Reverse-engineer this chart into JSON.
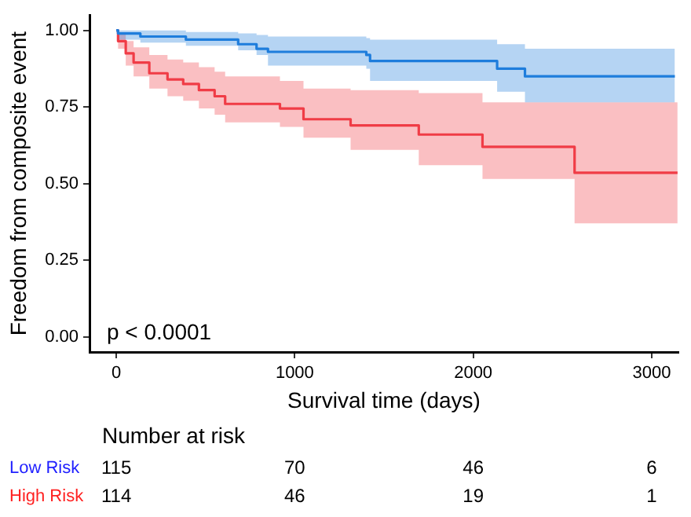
{
  "chart_data": [
    {
      "type": "step",
      "xlabel": "Survival time (days)",
      "ylabel": "Freedom from composite event",
      "annotations": [
        "p < 0.0001"
      ],
      "xlim": [
        -150,
        3150
      ],
      "xticks": [
        0,
        1000,
        2000,
        3000
      ],
      "ylim": [
        -0.05,
        1.05
      ],
      "yticks": [
        {
          "value": 0,
          "label": "0.00"
        },
        {
          "value": 0.25,
          "label": "0.25"
        },
        {
          "value": 0.5,
          "label": "0.50"
        },
        {
          "value": 0.75,
          "label": "0.75"
        },
        {
          "value": 1,
          "label": "1.00"
        }
      ],
      "grid": false,
      "legend": false,
      "marker": "none",
      "line_style": "solid",
      "series": [
        {
          "color": "#1e7ddc",
          "x": [
            0,
            10,
            135,
            390,
            683,
            786,
            850,
            1401,
            1422,
            2134,
            2290,
            3130
          ],
          "values": [
            1.0,
            0.99,
            0.98,
            0.97,
            0.955,
            0.94,
            0.93,
            0.92,
            0.9,
            0.875,
            0.85,
            0.85
          ],
          "upper": [
            1.0,
            1.0,
            1.0,
            0.995,
            0.99,
            0.985,
            0.98,
            0.975,
            0.97,
            0.955,
            0.94,
            0.94
          ],
          "lower": [
            1.0,
            0.97,
            0.96,
            0.95,
            0.935,
            0.92,
            0.885,
            0.875,
            0.835,
            0.8,
            0.765,
            0.765
          ]
        },
        {
          "color": "#f03c46",
          "x": [
            0,
            10,
            53,
            97,
            185,
            287,
            375,
            463,
            551,
            610,
            917,
            1049,
            1313,
            1695,
            2052,
            2568,
            3145
          ],
          "values": [
            1.0,
            0.965,
            0.925,
            0.895,
            0.86,
            0.84,
            0.825,
            0.805,
            0.785,
            0.76,
            0.745,
            0.71,
            0.69,
            0.66,
            0.62,
            0.535,
            0.535
          ],
          "upper": [
            1.0,
            0.99,
            0.965,
            0.945,
            0.92,
            0.905,
            0.895,
            0.88,
            0.865,
            0.85,
            0.835,
            0.81,
            0.805,
            0.795,
            0.765,
            0.765,
            0.765
          ],
          "lower": [
            1.0,
            0.94,
            0.885,
            0.85,
            0.81,
            0.785,
            0.77,
            0.745,
            0.725,
            0.7,
            0.685,
            0.65,
            0.61,
            0.56,
            0.515,
            0.37,
            0.37
          ]
        }
      ]
    },
    {
      "type": "heatmap",
      "title": "Number at risk",
      "categories": [
        null,
        null,
        null,
        null
      ],
      "y_categories": [
        "Low Risk",
        "High Risk"
      ],
      "colors": [
        "#2020ff",
        "#ff2020"
      ],
      "data_labels": true,
      "cells": [
        [
          115,
          70,
          46,
          6
        ],
        [
          114,
          46,
          19,
          1
        ]
      ]
    }
  ]
}
